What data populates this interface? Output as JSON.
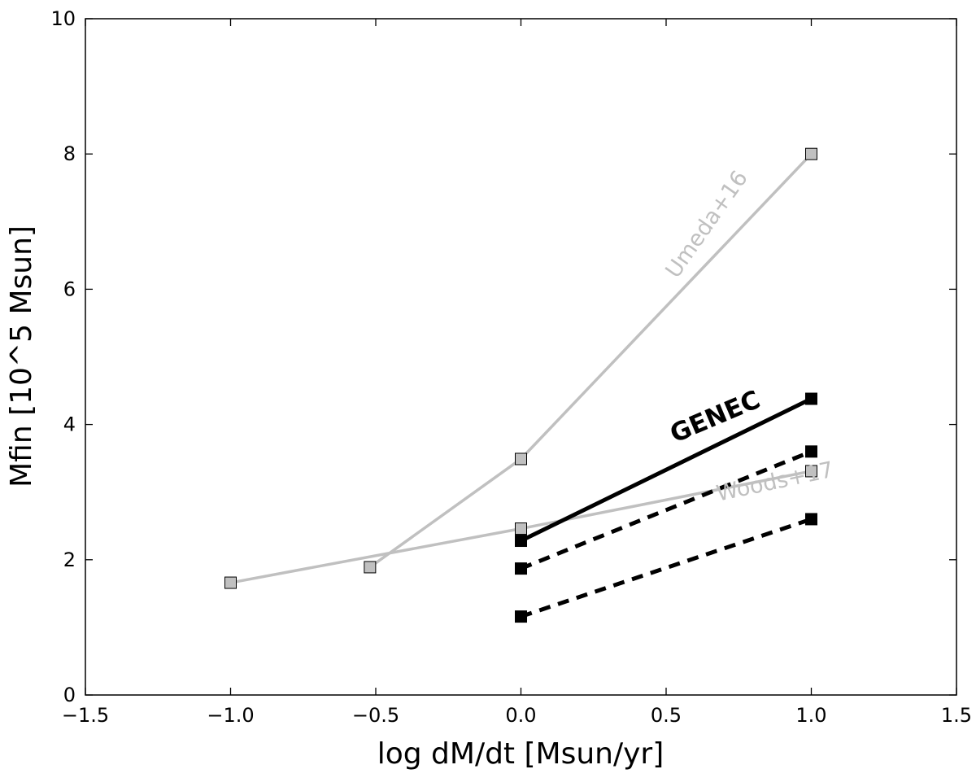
{
  "chart_data": {
    "type": "line",
    "title": "",
    "xlabel": "log dM/dt [Msun/yr]",
    "ylabel": "Mfin [10^5 Msun]",
    "xlim": [
      -1.5,
      1.5
    ],
    "ylim": [
      0,
      10
    ],
    "xticks": [
      -1.5,
      -1.0,
      -0.5,
      0.0,
      0.5,
      1.0,
      1.5
    ],
    "xtick_labels": [
      "−1.5",
      "−1.0",
      "−0.5",
      "0.0",
      "0.5",
      "1.0",
      "1.5"
    ],
    "yticks": [
      0,
      2,
      4,
      6,
      8,
      10
    ],
    "ytick_labels": [
      "0",
      "2",
      "4",
      "6",
      "8",
      "10"
    ],
    "grid": false,
    "series": [
      {
        "name": "Umeda+16",
        "color": "#c0c0c0",
        "marker_fill": "#c0c0c0",
        "style": "solid",
        "x": [
          -0.52,
          0.0,
          1.0
        ],
        "y": [
          1.89,
          3.49,
          8.0
        ]
      },
      {
        "name": "Woods+17",
        "color": "#c0c0c0",
        "marker_fill": "#c0c0c0",
        "style": "solid",
        "x": [
          -1.0,
          0.0,
          1.0
        ],
        "y": [
          1.66,
          2.46,
          3.31
        ]
      },
      {
        "name": "GENEC",
        "color": "#000000",
        "marker_fill": "#000000",
        "style": "solid",
        "x": [
          0.0,
          1.0
        ],
        "y": [
          2.28,
          4.38
        ]
      },
      {
        "name": "",
        "color": "#000000",
        "marker_fill": "#000000",
        "style": "dashed",
        "x": [
          0.0,
          1.0
        ],
        "y": [
          1.87,
          3.6
        ]
      },
      {
        "name": "",
        "color": "#000000",
        "marker_fill": "#000000",
        "style": "dashed",
        "x": [
          0.0,
          1.0
        ],
        "y": [
          1.16,
          2.6
        ]
      }
    ],
    "annotations": [
      {
        "text": "Umeda+16",
        "x": 0.66,
        "y": 6.9,
        "color": "#c0c0c0",
        "angle": -55,
        "weight": "normal"
      },
      {
        "text": "GENEC",
        "x": 0.68,
        "y": 4.0,
        "color": "#000000",
        "angle": -23,
        "weight": "bold"
      },
      {
        "text": "Woods+17",
        "x": 0.88,
        "y": 3.05,
        "color": "#c0c0c0",
        "angle": -12,
        "weight": "normal"
      }
    ]
  }
}
